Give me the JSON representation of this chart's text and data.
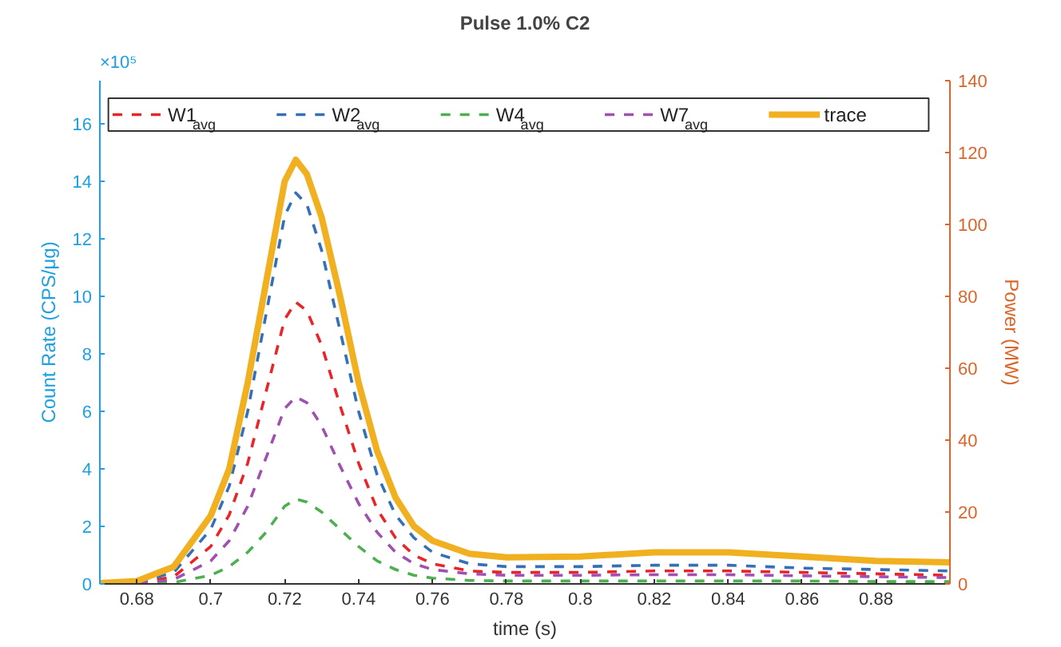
{
  "chart_data": {
    "type": "line",
    "title": "Pulse 1.0% C2",
    "xlabel": "time (s)",
    "ylabel": "Count Rate (CPS/μg)",
    "y2label": "Power (MW)",
    "annotations": [
      "×10⁵"
    ],
    "x": [
      0.67,
      0.68,
      0.69,
      0.7,
      0.705,
      0.71,
      0.715,
      0.72,
      0.723,
      0.726,
      0.73,
      0.735,
      0.74,
      0.745,
      0.75,
      0.755,
      0.76,
      0.77,
      0.78,
      0.8,
      0.82,
      0.84,
      0.86,
      0.88,
      0.9
    ],
    "xlim": [
      0.67,
      0.9
    ],
    "xticks": [
      0.68,
      0.7,
      0.72,
      0.74,
      0.76,
      0.78,
      0.8,
      0.82,
      0.84,
      0.86,
      0.88
    ],
    "ylim": [
      0,
      17.5
    ],
    "yticks": [
      0,
      2,
      4,
      6,
      8,
      10,
      12,
      14,
      16
    ],
    "y2lim": [
      0,
      140
    ],
    "y2ticks": [
      0,
      20,
      40,
      60,
      80,
      100,
      120,
      140
    ],
    "legend": "top",
    "grid": false,
    "marker": "none",
    "series": [
      {
        "name": "W1$_{avg}$",
        "color": "#e8262a",
        "line_style": "dashed",
        "values": [
          0,
          0.03,
          0.25,
          1.3,
          2.4,
          4.2,
          6.7,
          9.2,
          9.8,
          9.5,
          8.3,
          6.2,
          4.2,
          2.6,
          1.6,
          1.0,
          0.7,
          0.45,
          0.4,
          0.4,
          0.45,
          0.45,
          0.4,
          0.35,
          0.3
        ]
      },
      {
        "name": "W2$_{avg}$",
        "color": "#3470b8",
        "line_style": "dashed",
        "values": [
          0,
          0.05,
          0.4,
          1.9,
          3.4,
          6.0,
          9.4,
          12.8,
          13.6,
          13.2,
          11.6,
          8.8,
          6.0,
          3.8,
          2.4,
          1.6,
          1.1,
          0.7,
          0.6,
          0.6,
          0.65,
          0.65,
          0.55,
          0.5,
          0.45
        ]
      },
      {
        "name": "W4$_{avg}$",
        "color": "#4caf50",
        "line_style": "dashed",
        "values": [
          0,
          0.01,
          0.05,
          0.3,
          0.6,
          1.1,
          1.8,
          2.7,
          2.95,
          2.85,
          2.5,
          1.9,
          1.3,
          0.8,
          0.5,
          0.3,
          0.2,
          0.12,
          0.1,
          0.1,
          0.1,
          0.1,
          0.1,
          0.08,
          0.08
        ]
      },
      {
        "name": "W7$_{avg}$",
        "color": "#a050b0",
        "line_style": "dashed",
        "values": [
          0,
          0.02,
          0.15,
          0.8,
          1.5,
          2.7,
          4.4,
          6.1,
          6.5,
          6.3,
          5.5,
          4.1,
          2.8,
          1.8,
          1.1,
          0.7,
          0.5,
          0.35,
          0.3,
          0.3,
          0.32,
          0.32,
          0.28,
          0.25,
          0.22
        ]
      },
      {
        "name": "trace",
        "color": "#f0b020",
        "line_style": "solid",
        "axis": "y2",
        "values": [
          0.2,
          0.8,
          4.8,
          19,
          32,
          56,
          84,
          112,
          118,
          114,
          102,
          80,
          56,
          37,
          24,
          16,
          12,
          8.4,
          7.4,
          7.6,
          8.8,
          8.8,
          7.6,
          6.4,
          6
        ]
      }
    ]
  }
}
